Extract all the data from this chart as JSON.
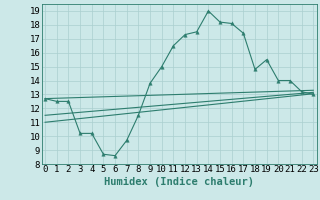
{
  "xlabel": "Humidex (Indice chaleur)",
  "x": [
    0,
    1,
    2,
    3,
    4,
    5,
    6,
    7,
    8,
    9,
    10,
    11,
    12,
    13,
    14,
    15,
    16,
    17,
    18,
    19,
    20,
    21,
    22,
    23
  ],
  "main_y": [
    12.7,
    12.5,
    12.5,
    10.2,
    10.2,
    8.7,
    8.6,
    9.7,
    11.5,
    13.8,
    15.0,
    16.5,
    17.3,
    17.5,
    19.0,
    18.2,
    18.1,
    17.4,
    14.8,
    15.5,
    14.0,
    14.0,
    13.2,
    13.0
  ],
  "line1_x": [
    0,
    23
  ],
  "line1_y": [
    12.7,
    13.3
  ],
  "line2_x": [
    0,
    23
  ],
  "line2_y": [
    11.5,
    13.15
  ],
  "line3_x": [
    0,
    23
  ],
  "line3_y": [
    11.0,
    13.05
  ],
  "ylim": [
    8,
    19.5
  ],
  "xlim": [
    -0.3,
    23.3
  ],
  "bg_color": "#cce8e8",
  "grid_color": "#aacfcf",
  "line_color": "#2d7d6e",
  "marker": "^",
  "marker_size": 2.5,
  "tick_fontsize": 6.5,
  "label_fontsize": 7.5,
  "yticks": [
    8,
    9,
    10,
    11,
    12,
    13,
    14,
    15,
    16,
    17,
    18,
    19
  ],
  "xticks": [
    0,
    1,
    2,
    3,
    4,
    5,
    6,
    7,
    8,
    9,
    10,
    11,
    12,
    13,
    14,
    15,
    16,
    17,
    18,
    19,
    20,
    21,
    22,
    23
  ]
}
